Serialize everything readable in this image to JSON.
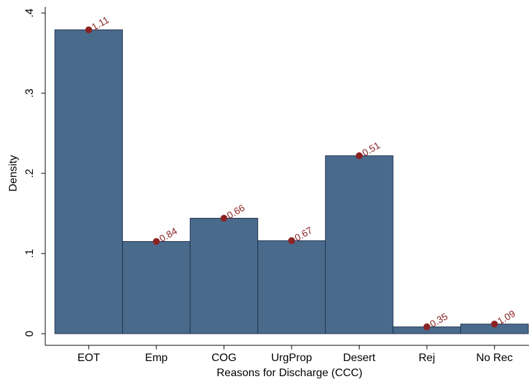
{
  "chart_data": {
    "type": "bar",
    "x_label": "Reasons for Discharge (CCC)",
    "y_label": "Density",
    "categories": [
      "EOT",
      "Emp",
      "COG",
      "UrgProp",
      "Desert",
      "Rej",
      "No Rec"
    ],
    "values": [
      0.379,
      0.115,
      0.144,
      0.116,
      0.222,
      0.0085,
      0.012
    ],
    "color": "#4a6a8c",
    "marker_color": "#8b2323",
    "marker_values": [
      1.11,
      0.84,
      0.66,
      0.67,
      0.51,
      0.35,
      1.09
    ],
    "ylim": [
      0,
      0.4
    ],
    "yticks": [
      0,
      {
        "value": 0.1,
        "label": ".1"
      },
      {
        "value": 0.2,
        "label": ".2"
      },
      {
        "value": 0.3,
        "label": ".3"
      },
      {
        "value": 0.4,
        "label": ".4"
      }
    ],
    "grid": false
  }
}
